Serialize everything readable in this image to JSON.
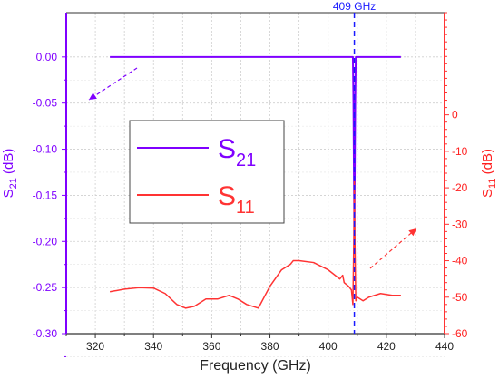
{
  "chart_data": {
    "type": "line",
    "title": "",
    "xlabel": "Frequency (GHz)",
    "ylabel_left": {
      "base": "S",
      "sub": "21",
      "unit": " (dB)"
    },
    "ylabel_right": {
      "base": "S",
      "sub": "11",
      "unit": " (dB)"
    },
    "xlim": [
      310,
      440
    ],
    "xticks": [
      320,
      340,
      360,
      380,
      400,
      420,
      440
    ],
    "ylim_left": [
      -0.3,
      0.048
    ],
    "yticks_left": [
      "0.00",
      "-0.05",
      "-0.10",
      "-0.15",
      "-0.20",
      "-0.25",
      "-0.30"
    ],
    "ylim_right": [
      -60,
      28
    ],
    "yticks_right": [
      "0",
      "-10",
      "-20",
      "-30",
      "-40",
      "-50",
      "-60"
    ],
    "grid": true,
    "colors": {
      "s21": "#7f00ff",
      "s11": "#ff3333",
      "annotation": "#1a1aff"
    },
    "annotation": {
      "text": "409 GHz",
      "x": 409
    },
    "series": [
      {
        "name": "S21",
        "label_base": "S",
        "label_sub": "21",
        "axis": "left",
        "x": [
          325,
          350,
          380,
          400,
          407,
          408.5,
          408.7,
          409,
          409.3,
          409.5,
          411,
          420,
          425
        ],
        "y": [
          0.0,
          0.0,
          0.0,
          0.0,
          0.0,
          0.0,
          -0.05,
          -0.2,
          -0.05,
          0.0,
          0.0,
          0.0,
          0.0
        ]
      },
      {
        "name": "S11",
        "label_base": "S",
        "label_sub": "11",
        "axis": "right",
        "x": [
          325,
          330,
          335,
          340,
          344,
          348,
          351,
          354,
          358,
          362,
          366,
          369,
          372,
          376,
          380,
          384,
          387,
          388,
          390,
          395,
          400,
          404,
          405,
          405.5,
          407,
          408,
          408.5,
          408.8,
          409,
          409.2,
          409.5,
          410,
          411,
          412,
          414,
          416,
          418,
          422,
          425
        ],
        "y": [
          -48.5,
          -47.8,
          -47.4,
          -47.5,
          -49,
          -52,
          -53,
          -52.5,
          -50.5,
          -50.5,
          -49.5,
          -50.5,
          -52,
          -53,
          -47,
          -42.5,
          -41,
          -40,
          -40,
          -40.5,
          -42.5,
          -45,
          -44,
          -46,
          -47,
          -48,
          -52,
          -35,
          -18,
          -35,
          -51,
          -50,
          -50.5,
          -51,
          -50,
          -49.5,
          -49,
          -49.5,
          -49.5
        ]
      }
    ]
  }
}
